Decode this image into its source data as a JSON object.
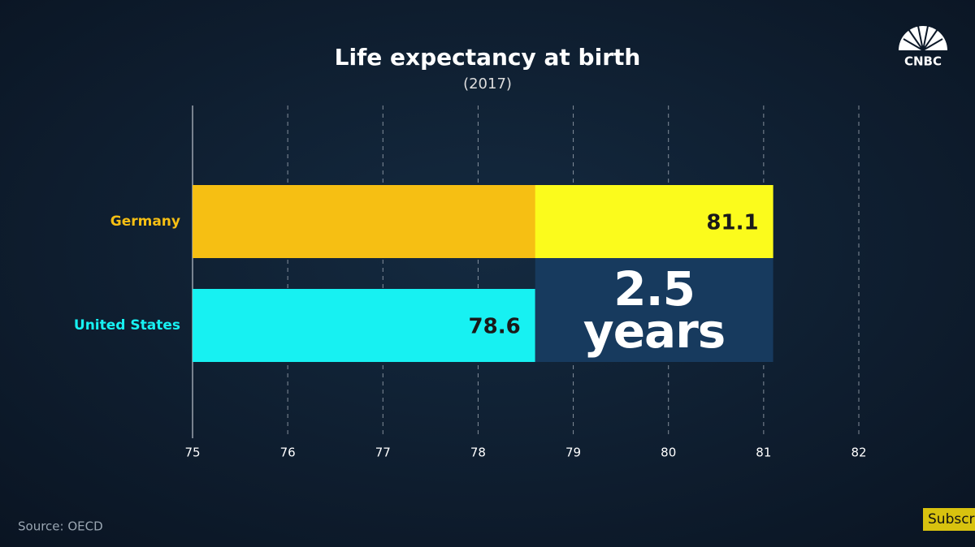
{
  "chart_data": {
    "type": "hbar",
    "title": "Life expectancy at birth",
    "subtitle": "(2017)",
    "categories": [
      "Germany",
      "United States"
    ],
    "values": [
      81.1,
      78.6
    ],
    "colors": [
      "#f6bf13",
      "#17f1f2"
    ],
    "highlight_color": "#fbfb1c",
    "annotation": {
      "value": 2.5,
      "label": "2.5 years",
      "color": "#173a5e"
    },
    "xlim": [
      75,
      82
    ],
    "xticks": [
      75,
      76,
      77,
      78,
      79,
      80,
      81,
      82
    ],
    "grid": true,
    "source": "Source: OECD"
  },
  "logo": "CNBC",
  "subscribe_button": "Subscri"
}
